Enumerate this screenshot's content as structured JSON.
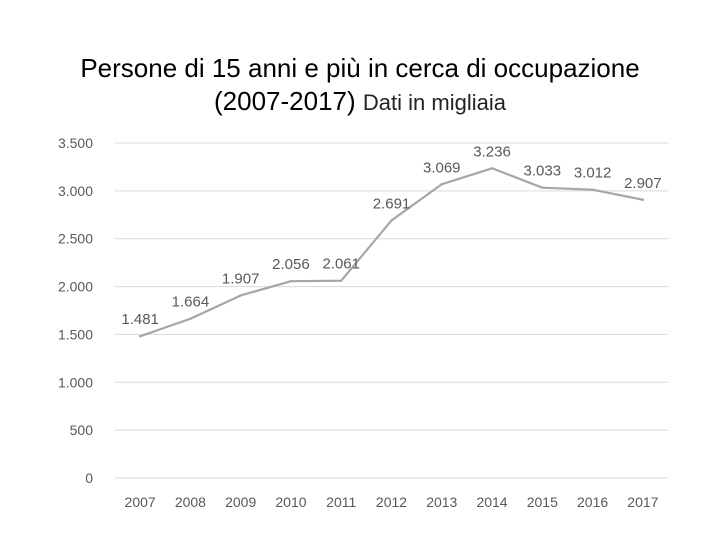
{
  "title": {
    "line1": "Persone di 15 anni e più in cerca di occupazione",
    "line2_main": "(2007-2017)",
    "line2_sub": "Dati in migliaia"
  },
  "chart_data": {
    "type": "line",
    "title": "Persone di 15 anni e più in cerca di occupazione (2007-2017) Dati in migliaia",
    "categories": [
      "2007",
      "2008",
      "2009",
      "2010",
      "2011",
      "2012",
      "2013",
      "2014",
      "2015",
      "2016",
      "2017"
    ],
    "series": [
      {
        "values": [
          1481,
          1664,
          1907,
          2056,
          2061,
          2691,
          3069,
          3236,
          3033,
          3012,
          2907
        ],
        "labels": [
          "1.481",
          "1.664",
          "1.907",
          "2.056",
          "2.061",
          "2.691",
          "3.069",
          "3.236",
          "3.033",
          "3.012",
          "2.907"
        ]
      }
    ],
    "ylim": [
      0,
      3500
    ],
    "yticks": [
      0,
      500,
      1000,
      1500,
      2000,
      2500,
      3000,
      3500
    ],
    "ytick_labels": [
      "0",
      "500",
      "1.000",
      "1.500",
      "2.000",
      "2.500",
      "3.000",
      "3.500"
    ],
    "grid": true,
    "legend": "none",
    "colors": {
      "line": "#a6a6a6",
      "grid": "#d9d9d9",
      "text": "#595959"
    }
  }
}
